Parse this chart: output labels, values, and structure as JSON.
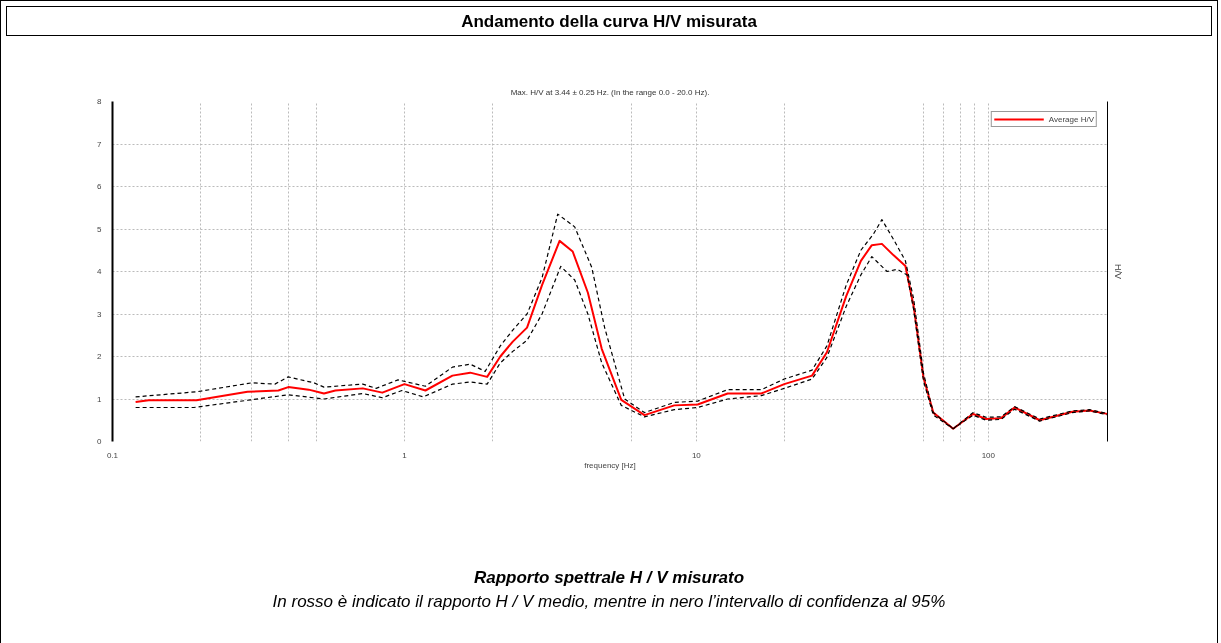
{
  "chart_data": {
    "type": "line",
    "title": "Andamento della curva H/V misurata",
    "subtitle": "Max. H/V at 3.44 ± 0.25 Hz. (In the range 0.0 - 20.0 Hz).",
    "xlabel": "frequency [Hz]",
    "ylabel": "H/V",
    "log": "x",
    "xlim": [
      0.1,
      256
    ],
    "ylim": [
      0,
      8
    ],
    "xticks": [
      {
        "value": 0.1,
        "label": "0.1"
      },
      {
        "value": 0.2,
        "label": null
      },
      {
        "value": 0.3,
        "label": null
      },
      {
        "value": 0.4,
        "label": null
      },
      {
        "value": 0.5,
        "label": null
      },
      {
        "value": 1,
        "label": "1"
      },
      {
        "value": 2,
        "label": null
      },
      {
        "value": 6,
        "label": null
      },
      {
        "value": 10,
        "label": "10"
      },
      {
        "value": 20,
        "label": null
      },
      {
        "value": 60,
        "label": null
      },
      {
        "value": 70,
        "label": null
      },
      {
        "value": 80,
        "label": null
      },
      {
        "value": 90,
        "label": null
      },
      {
        "value": 100,
        "label": "100"
      }
    ],
    "yticks": [
      0,
      1,
      2,
      3,
      4,
      5,
      6,
      7,
      8
    ],
    "grid": true,
    "legend": "top right",
    "series": [
      {
        "name": "Average H/V",
        "color": "#ff0000",
        "line_style": "solid",
        "x": [
          0.12,
          0.133,
          0.194,
          0.29,
          0.37,
          0.4,
          0.47,
          0.53,
          0.58,
          0.72,
          0.84,
          1.0,
          1.18,
          1.46,
          1.68,
          1.92,
          2.13,
          2.35,
          2.63,
          2.96,
          3.4,
          3.77,
          4.25,
          4.74,
          5.53,
          6.64,
          8.4,
          10.1,
          12.8,
          16.7,
          20,
          24.9,
          28,
          32.6,
          36.6,
          39.9,
          43.2,
          47.4,
          52,
          55.5,
          60,
          64.8,
          75.8,
          88.6,
          98.2,
          110.6,
          123,
          150,
          194,
          222,
          255
        ],
        "values": [
          0.93,
          0.97,
          0.97,
          1.17,
          1.2,
          1.28,
          1.22,
          1.13,
          1.2,
          1.25,
          1.15,
          1.35,
          1.2,
          1.55,
          1.62,
          1.52,
          2.0,
          2.35,
          2.68,
          3.68,
          4.72,
          4.47,
          3.5,
          2.18,
          0.98,
          0.62,
          0.85,
          0.87,
          1.13,
          1.13,
          1.35,
          1.55,
          2.1,
          3.42,
          4.25,
          4.62,
          4.65,
          4.38,
          4.13,
          3.18,
          1.5,
          0.68,
          0.3,
          0.65,
          0.53,
          0.55,
          0.8,
          0.5,
          0.7,
          0.73,
          0.65
        ]
      },
      {
        "color": "#000000",
        "line_style": "dashed",
        "x": [
          0.12,
          0.194,
          0.3,
          0.36,
          0.4,
          0.49,
          0.53,
          0.72,
          0.8,
          0.95,
          1.18,
          1.46,
          1.68,
          1.89,
          2.13,
          2.35,
          2.63,
          2.96,
          3.35,
          3.83,
          4.38,
          4.85,
          5.68,
          6.64,
          8.4,
          10.1,
          12.8,
          16.7,
          20,
          24.9,
          28,
          32.6,
          36.6,
          40.4,
          43.2,
          47.4,
          52,
          55.5,
          60,
          64.8,
          75.8,
          88.6,
          98.2,
          110.6,
          123,
          150,
          194,
          222,
          255
        ],
        "values": [
          1.05,
          1.17,
          1.38,
          1.35,
          1.52,
          1.38,
          1.28,
          1.35,
          1.25,
          1.45,
          1.3,
          1.75,
          1.82,
          1.65,
          2.25,
          2.62,
          3.0,
          3.85,
          5.35,
          5.05,
          4.1,
          2.68,
          1.0,
          0.68,
          0.92,
          0.95,
          1.22,
          1.22,
          1.47,
          1.68,
          2.25,
          3.68,
          4.5,
          4.88,
          5.22,
          4.75,
          4.25,
          3.35,
          1.6,
          0.68,
          0.3,
          0.68,
          0.57,
          0.58,
          0.82,
          0.53,
          0.72,
          0.75,
          0.66
        ]
      },
      {
        "color": "#000000",
        "line_style": "dashed",
        "x": [
          0.12,
          0.19,
          0.29,
          0.4,
          0.53,
          0.72,
          0.84,
          0.98,
          1.16,
          1.46,
          1.68,
          1.92,
          2.13,
          2.35,
          2.63,
          2.96,
          3.43,
          3.83,
          4.25,
          4.74,
          5.53,
          6.64,
          8.4,
          10.1,
          12.8,
          16.7,
          20,
          24.9,
          28,
          32.6,
          36.6,
          39.9,
          45,
          48.8,
          52.7,
          55.5,
          60,
          64.8,
          75.8,
          88.6,
          98.2,
          110.6,
          123,
          150,
          194,
          222,
          255
        ],
        "values": [
          0.8,
          0.8,
          0.97,
          1.1,
          1.0,
          1.13,
          1.03,
          1.2,
          1.05,
          1.35,
          1.4,
          1.35,
          1.85,
          2.12,
          2.38,
          3.0,
          4.12,
          3.8,
          3.0,
          1.85,
          0.85,
          0.58,
          0.75,
          0.8,
          1.0,
          1.08,
          1.25,
          1.47,
          1.98,
          3.18,
          3.92,
          4.35,
          4.0,
          4.05,
          3.92,
          3.1,
          1.42,
          0.62,
          0.3,
          0.62,
          0.5,
          0.52,
          0.76,
          0.48,
          0.68,
          0.72,
          0.63
        ]
      }
    ],
    "annotations": [
      "Rapporto spettrale H / V misurato",
      "In rosso è indicato il rapporto H / V medio, mentre in nero l’intervallo di confidenza al 95%"
    ]
  }
}
